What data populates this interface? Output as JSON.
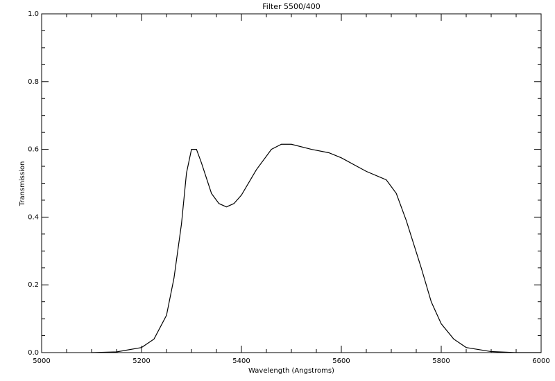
{
  "chart_data": {
    "type": "line",
    "title": "Filter 5500/400",
    "x_label": "Wavelength (Angstroms)",
    "y_label": "Transmission",
    "x": [
      5100,
      5150,
      5200,
      5225,
      5250,
      5265,
      5280,
      5290,
      5300,
      5310,
      5320,
      5340,
      5355,
      5370,
      5385,
      5400,
      5430,
      5460,
      5480,
      5500,
      5540,
      5575,
      5600,
      5650,
      5690,
      5710,
      5730,
      5760,
      5780,
      5800,
      5825,
      5850,
      5900,
      5950,
      6000
    ],
    "series": [
      {
        "name": "Transmission",
        "color": "#000000",
        "values": [
          0.0,
          0.002,
          0.015,
          0.04,
          0.11,
          0.22,
          0.38,
          0.53,
          0.6,
          0.6,
          0.56,
          0.47,
          0.44,
          0.43,
          0.44,
          0.465,
          0.54,
          0.6,
          0.615,
          0.615,
          0.6,
          0.59,
          0.575,
          0.535,
          0.51,
          0.47,
          0.39,
          0.25,
          0.15,
          0.085,
          0.04,
          0.015,
          0.003,
          0.0,
          0.0
        ]
      }
    ],
    "xlim": [
      5000,
      6000
    ],
    "ylim": [
      0,
      1
    ],
    "xticks": [
      5000,
      5200,
      5400,
      5600,
      5800,
      6000
    ],
    "yticks": [
      {
        "value": 0,
        "label": "0.0"
      },
      0.2,
      0.4,
      0.6,
      0.8,
      {
        "value": 1,
        "label": "1.0"
      }
    ],
    "xminorticks": [
      5050,
      5100,
      5150,
      5250,
      5300,
      5350,
      5450,
      5500,
      5550,
      5650,
      5700,
      5750,
      5850,
      5900,
      5950
    ],
    "yminorticks": [
      0.05,
      0.1,
      0.15,
      0.25,
      0.3,
      0.35,
      0.45,
      0.5,
      0.55,
      0.65,
      0.7,
      0.75,
      0.85,
      0.9,
      0.95
    ],
    "grid": false
  }
}
